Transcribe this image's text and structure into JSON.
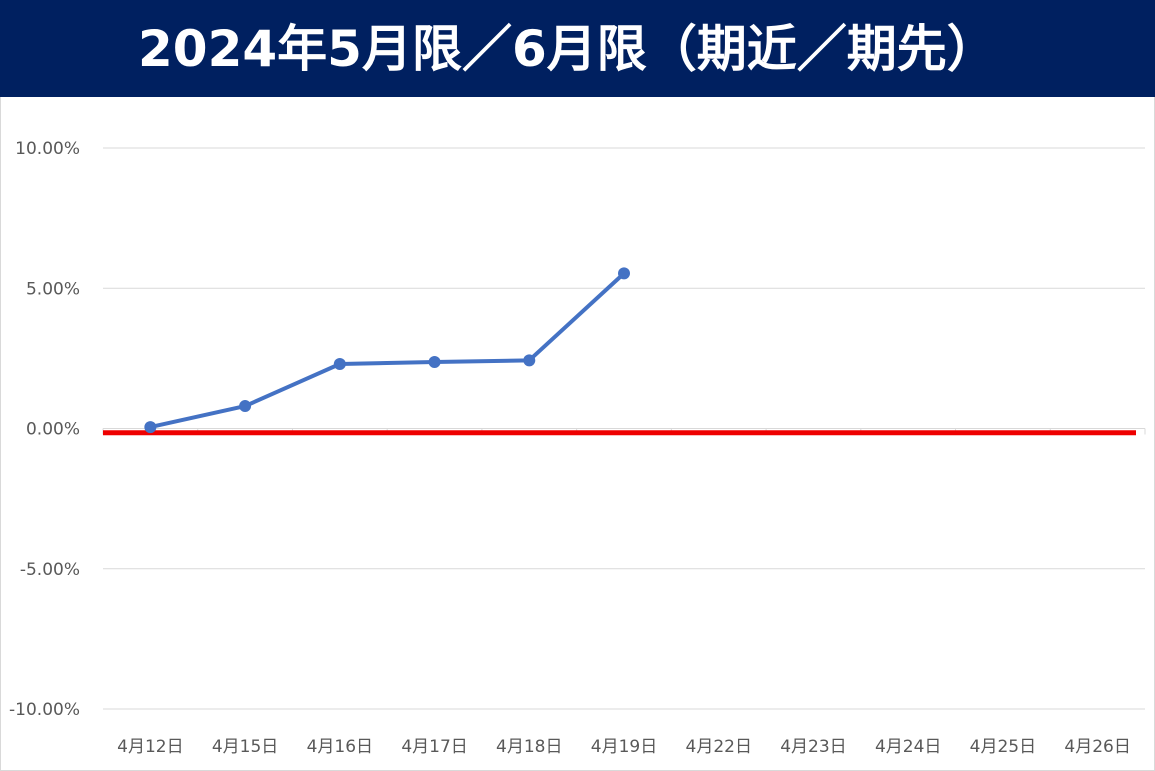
{
  "chart_data": {
    "type": "line",
    "title": "2024年5月限／6月限（期近／期先）",
    "xlabel": "",
    "ylabel": "",
    "categories": [
      "4月12日",
      "4月15日",
      "4月16日",
      "4月17日",
      "4月18日",
      "4月19日",
      "4月22日",
      "4月23日",
      "4月24日",
      "4月25日",
      "4月26日"
    ],
    "y_ticks": [
      "10.00%",
      "5.00%",
      "0.00%",
      "-5.00%",
      "-10.00%"
    ],
    "ylim": [
      -10,
      10
    ],
    "grid": true,
    "legend": "none",
    "series": [
      {
        "values": [
          0.05,
          0.8,
          2.3,
          2.37,
          2.43,
          5.53,
          null,
          null,
          null,
          null,
          null
        ],
        "color": "#4472c4"
      },
      {
        "values": [
          -0.15,
          -0.15,
          -0.15,
          -0.15,
          -0.15,
          -0.15,
          -0.15,
          -0.15,
          -0.15,
          -0.15,
          -0.15
        ],
        "color": "#ee0000"
      }
    ]
  }
}
